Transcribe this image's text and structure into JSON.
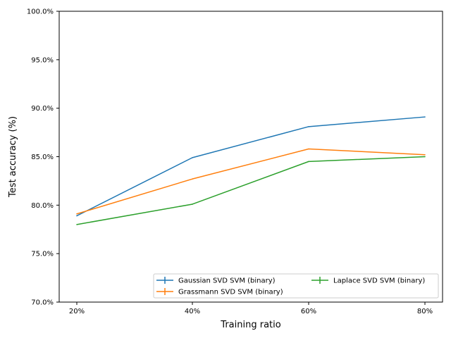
{
  "chart_data": {
    "type": "line",
    "title": "",
    "xlabel": "Training ratio",
    "ylabel": "Test accuracy (%)",
    "categories": [
      "20%",
      "40%",
      "60%",
      "80%"
    ],
    "ylim": [
      70.0,
      100.0
    ],
    "yticks": [
      70.0,
      75.0,
      80.0,
      85.0,
      90.0,
      95.0,
      100.0
    ],
    "ytick_labels": [
      "70.0%",
      "75.0%",
      "80.0%",
      "85.0%",
      "90.0%",
      "95.0%",
      "100.0%"
    ],
    "grid": false,
    "legend_position": "lower-right",
    "legend_columns": 2,
    "series": [
      {
        "name": "Gaussian SVD SVM (binary)",
        "color": "#1f77b4",
        "values": [
          78.9,
          84.9,
          88.1,
          89.1
        ]
      },
      {
        "name": "Grassmann SVD SVM (binary)",
        "color": "#ff7f0e",
        "values": [
          79.1,
          82.7,
          85.8,
          85.2
        ]
      },
      {
        "name": "Laplace SVD SVM (binary)",
        "color": "#2ca02c",
        "values": [
          78.0,
          80.1,
          84.5,
          85.0
        ]
      }
    ]
  }
}
